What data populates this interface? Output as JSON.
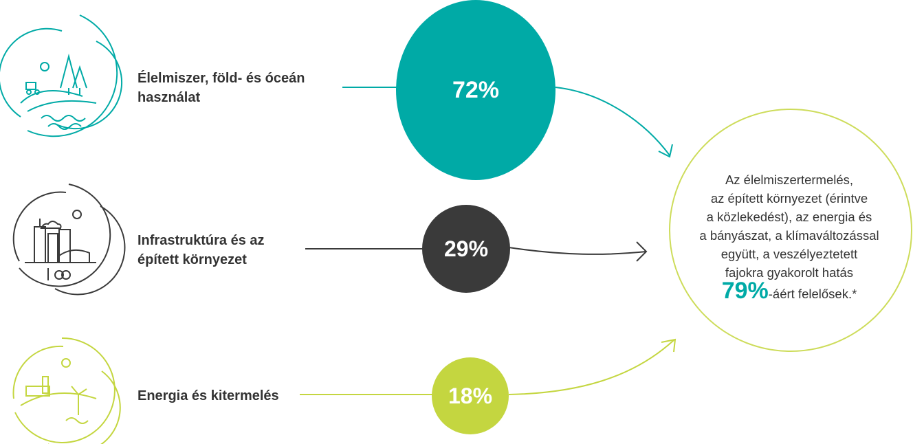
{
  "colors": {
    "teal": "#00aaa6",
    "dark": "#3a3a3a",
    "green": "#c4d640",
    "outline": "#cddc5a",
    "text": "#333333"
  },
  "items": [
    {
      "label_lines": [
        "Élelmiszer, föld- és óceán",
        "használat"
      ],
      "value": "72%",
      "icon": "farmland-forest-ocean-icon"
    },
    {
      "label_lines": [
        "Infrastruktúra és az",
        "épített környezet"
      ],
      "value": "29%",
      "icon": "city-buildings-icon"
    },
    {
      "label_lines": [
        "Energia és kitermelés"
      ],
      "value": "18%",
      "icon": "factory-windmill-icon"
    }
  ],
  "summary": {
    "lines": [
      "Az élelmiszertermelés,",
      "az épített környezet (érintve",
      "a közlekedést), az energia és",
      "a bányászat, a klímaváltozással",
      "együtt, a veszélyeztetett",
      "fajokra gyakorolt hatás"
    ],
    "highlight": "79%",
    "suffix": "-áért felelősek.*"
  }
}
